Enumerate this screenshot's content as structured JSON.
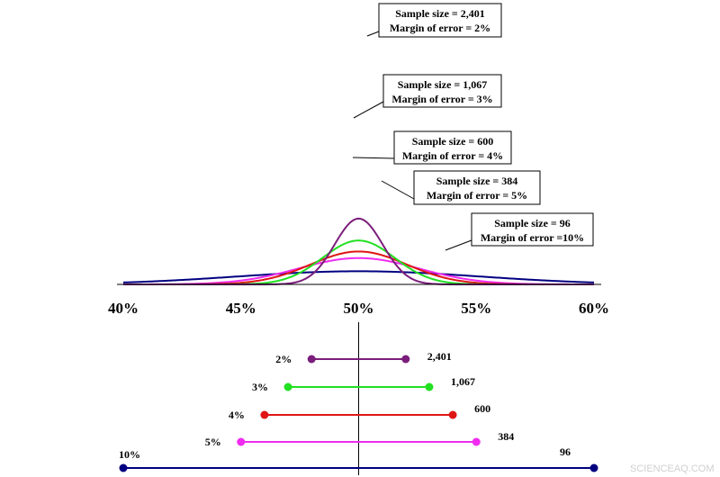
{
  "chart_data": [
    {
      "type": "line",
      "title": "",
      "xlabel": "",
      "ylabel": "",
      "x_unit": "%",
      "xlim": [
        40,
        60
      ],
      "x_ticks": [
        "40%",
        "45%",
        "50%",
        "55%",
        "60%"
      ],
      "x_tick_values": [
        40,
        45,
        50,
        55,
        60
      ],
      "grid": false,
      "mean": 50,
      "series": [
        {
          "sample_size": 2401,
          "margin_of_error": 2,
          "color": "#7B1E7B",
          "label_line1": "Sample size = 2,401",
          "label_line2": "Margin of error = 2%"
        },
        {
          "sample_size": 1067,
          "margin_of_error": 3,
          "color": "#22E022",
          "label_line1": "Sample size = 1,067",
          "label_line2": "Margin of error = 3%"
        },
        {
          "sample_size": 600,
          "margin_of_error": 4,
          "color": "#E01515",
          "label_line1": "Sample size = 600",
          "label_line2": "Margin of error = 4%"
        },
        {
          "sample_size": 384,
          "margin_of_error": 5,
          "color": "#F02CF0",
          "label_line1": "Sample size = 384",
          "label_line2": "Margin of error = 5%"
        },
        {
          "sample_size": 96,
          "margin_of_error": 10,
          "color": "#000080",
          "label_line1": "Sample size = 96",
          "label_line2": "Margin of error =10%"
        }
      ]
    },
    {
      "type": "interval",
      "title": "",
      "center": 50,
      "intervals": [
        {
          "margin_label": "2%",
          "size_label": "2,401",
          "low": 48,
          "high": 52,
          "color": "#7B1E7B"
        },
        {
          "margin_label": "3%",
          "size_label": "1,067",
          "low": 47,
          "high": 53,
          "color": "#22E022"
        },
        {
          "margin_label": "4%",
          "size_label": "600",
          "low": 46,
          "high": 54,
          "color": "#E01515"
        },
        {
          "margin_label": "5%",
          "size_label": "384",
          "low": 45,
          "high": 55,
          "color": "#F02CF0"
        },
        {
          "margin_label": "10%",
          "size_label": "96",
          "low": 40,
          "high": 60,
          "color": "#000080"
        }
      ]
    }
  ],
  "watermark": "SCIENCEAQ.COM"
}
